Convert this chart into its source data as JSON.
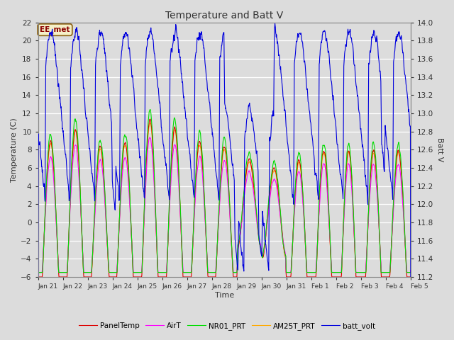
{
  "title": "Temperature and Batt V",
  "xlabel": "Time",
  "ylabel_left": "Temperature (C)",
  "ylabel_right": "Batt V",
  "annotation": "EE_met",
  "ylim_left": [
    -6,
    22
  ],
  "ylim_right": [
    11.2,
    14.0
  ],
  "yticks_left": [
    -6,
    -4,
    -2,
    0,
    2,
    4,
    6,
    8,
    10,
    12,
    14,
    16,
    18,
    20,
    22
  ],
  "yticks_right": [
    11.2,
    11.4,
    11.6,
    11.8,
    12.0,
    12.2,
    12.4,
    12.6,
    12.8,
    13.0,
    13.2,
    13.4,
    13.6,
    13.8,
    14.0
  ],
  "bg_color": "#dcdcdc",
  "plot_bg_color": "#dcdcdc",
  "colors": {
    "PanelTemp": "#dd0000",
    "AirT": "#ff00ff",
    "NR01_PRT": "#00dd00",
    "AM25T_PRT": "#ffaa00",
    "batt_volt": "#0000dd"
  },
  "legend_labels": [
    "PanelTemp",
    "AirT",
    "NR01_PRT",
    "AM25T_PRT",
    "batt_volt"
  ],
  "x_tick_labels": [
    "Jan 21",
    "Jan 22",
    "Jan 23",
    "Jan 24",
    "Jan 25",
    "Jan 26",
    "Jan 27",
    "Jan 28",
    "Jan 29",
    "Jan 30",
    "Jan 31",
    "Feb 1",
    "Feb 2",
    "Feb 3",
    "Feb 4",
    "Feb 5"
  ],
  "n_points": 1440,
  "n_days": 15
}
